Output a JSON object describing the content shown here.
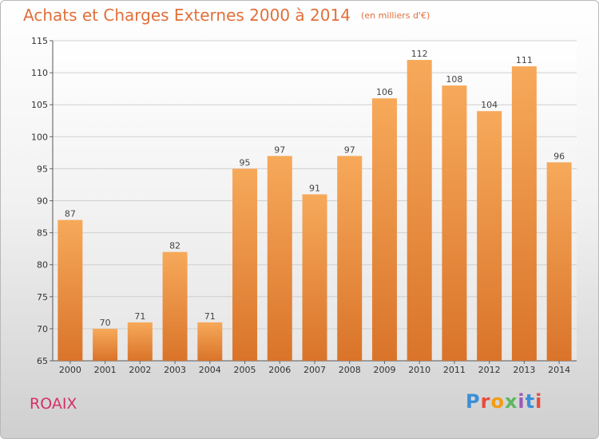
{
  "header": {
    "title": "Achats et Charges Externes 2000 à 2014",
    "unit": "(en milliers d'€)"
  },
  "footer": {
    "commune": "ROAIX",
    "logo": "Proxiti",
    "logo_colors": [
      "#3a8fd8",
      "#e74c3c",
      "#f39c12",
      "#5cb85c",
      "#9b59b6",
      "#3a8fd8",
      "#e74c3c"
    ]
  },
  "colors": {
    "title": "#e0703a",
    "commune": "#d2336a",
    "bar_top": "#f7a95a",
    "bar_bottom": "#d9742a",
    "grid": "#d0d0d0"
  },
  "chart_data": {
    "type": "bar",
    "title": "Achats et Charges Externes 2000 à 2014",
    "xlabel": "",
    "ylabel": "",
    "ylim": [
      65,
      115
    ],
    "yticks": [
      65,
      70,
      75,
      80,
      85,
      90,
      95,
      100,
      105,
      110,
      115
    ],
    "grid": true,
    "categories": [
      "2000",
      "2001",
      "2002",
      "2003",
      "2004",
      "2005",
      "2006",
      "2007",
      "2008",
      "2009",
      "2010",
      "2011",
      "2012",
      "2013",
      "2014"
    ],
    "values": [
      87,
      70,
      71,
      82,
      71,
      95,
      97,
      91,
      97,
      106,
      112,
      108,
      104,
      111,
      96
    ]
  }
}
